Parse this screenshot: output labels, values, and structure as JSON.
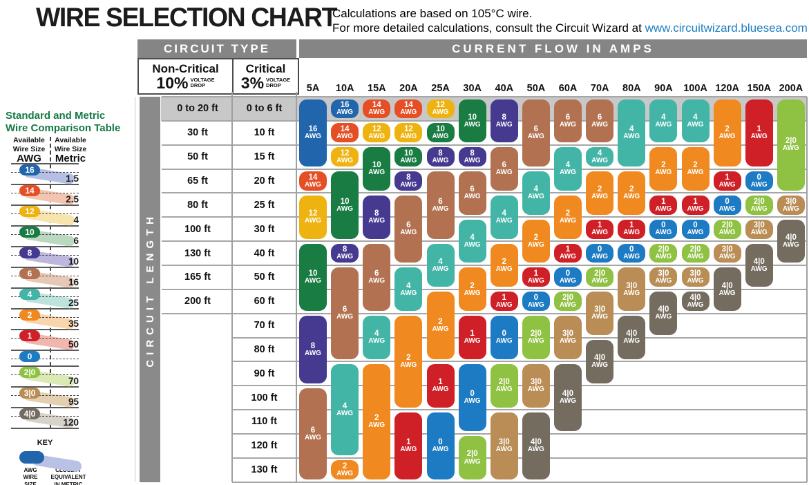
{
  "page": {
    "title": "WIRE SELECTION CHART",
    "subtitle_line1": "Calculations are based on 105°C wire.",
    "subtitle_line2": "For more detailed calculations, consult the Circuit Wizard at ",
    "subtitle_link": "www.circuitwizard.bluesea.com"
  },
  "table": {
    "circuit_type_header": "CIRCUIT TYPE",
    "current_flow_header": "CURRENT FLOW IN AMPS",
    "circuit_length_label": "CIRCUIT LENGTH",
    "non_critical": {
      "name": "Non-Critical",
      "percent": "10%",
      "qualifier": "VOLTAGE\nDROP"
    },
    "critical": {
      "name": "Critical",
      "percent": "3%",
      "qualifier": "VOLTAGE\nDROP"
    }
  },
  "chart_data": {
    "type": "table",
    "title": "WIRE SELECTION CHART",
    "x_axis": "CURRENT FLOW IN AMPS",
    "y_axis": "CIRCUIT LENGTH",
    "amp_columns": [
      "5A",
      "10A",
      "15A",
      "20A",
      "25A",
      "30A",
      "40A",
      "50A",
      "60A",
      "70A",
      "80A",
      "90A",
      "100A",
      "120A",
      "150A",
      "200A"
    ],
    "length_rows": [
      {
        "non_critical": "0 to 20 ft",
        "critical": "0 to 6 ft"
      },
      {
        "non_critical": "30 ft",
        "critical": "10 ft"
      },
      {
        "non_critical": "50 ft",
        "critical": "15 ft"
      },
      {
        "non_critical": "65 ft",
        "critical": "20 ft"
      },
      {
        "non_critical": "80 ft",
        "critical": "25 ft"
      },
      {
        "non_critical": "100 ft",
        "critical": "30 ft"
      },
      {
        "non_critical": "130 ft",
        "critical": "40 ft"
      },
      {
        "non_critical": "165 ft",
        "critical": "50 ft"
      },
      {
        "non_critical": "200 ft",
        "critical": "60 ft"
      },
      {
        "non_critical": "",
        "critical": "70 ft"
      },
      {
        "non_critical": "",
        "critical": "80 ft"
      },
      {
        "non_critical": "",
        "critical": "90 ft"
      },
      {
        "non_critical": "",
        "critical": "100 ft"
      },
      {
        "non_critical": "",
        "critical": "110 ft"
      },
      {
        "non_critical": "",
        "critical": "120 ft"
      },
      {
        "non_critical": "",
        "critical": "130 ft"
      }
    ],
    "awg_unit_label": "AWG",
    "wire_gauge_spans": [
      {
        "amps": "5A",
        "pills": [
          [
            "16",
            1,
            3
          ],
          [
            "14",
            4,
            4
          ],
          [
            "12",
            5,
            6
          ],
          [
            "10",
            7,
            9
          ],
          [
            "8",
            10,
            12
          ],
          [
            "6",
            13,
            16
          ]
        ]
      },
      {
        "amps": "10A",
        "pills": [
          [
            "16",
            1,
            1
          ],
          [
            "14",
            2,
            2
          ],
          [
            "12",
            3,
            3
          ],
          [
            "10",
            4,
            6
          ],
          [
            "8",
            7,
            7
          ],
          [
            "6",
            8,
            11
          ],
          [
            "4",
            12,
            15
          ],
          [
            "2",
            16,
            16
          ]
        ]
      },
      {
        "amps": "15A",
        "pills": [
          [
            "14",
            1,
            1
          ],
          [
            "12",
            2,
            2
          ],
          [
            "10",
            3,
            4
          ],
          [
            "8",
            5,
            6
          ],
          [
            "6",
            7,
            9
          ],
          [
            "4",
            10,
            11
          ],
          [
            "2",
            12,
            16
          ]
        ]
      },
      {
        "amps": "20A",
        "pills": [
          [
            "14",
            1,
            1
          ],
          [
            "12",
            2,
            2
          ],
          [
            "10",
            3,
            3
          ],
          [
            "8",
            4,
            4
          ],
          [
            "6",
            5,
            7
          ],
          [
            "4",
            8,
            9
          ],
          [
            "2",
            10,
            13
          ],
          [
            "1",
            14,
            16
          ]
        ]
      },
      {
        "amps": "25A",
        "pills": [
          [
            "12",
            1,
            1
          ],
          [
            "10",
            2,
            2
          ],
          [
            "8",
            3,
            3
          ],
          [
            "6",
            4,
            6
          ],
          [
            "4",
            7,
            8
          ],
          [
            "2",
            9,
            11
          ],
          [
            "1",
            12,
            13
          ],
          [
            "0",
            14,
            16
          ]
        ]
      },
      {
        "amps": "30A",
        "pills": [
          [
            "10",
            1,
            2
          ],
          [
            "8",
            3,
            3
          ],
          [
            "6",
            4,
            5
          ],
          [
            "4",
            6,
            7
          ],
          [
            "2",
            8,
            9
          ],
          [
            "1",
            10,
            11
          ],
          [
            "0",
            12,
            14
          ],
          [
            "2|0",
            15,
            16
          ]
        ]
      },
      {
        "amps": "40A",
        "pills": [
          [
            "8",
            1,
            2
          ],
          [
            "6",
            3,
            4
          ],
          [
            "4",
            5,
            6
          ],
          [
            "2",
            7,
            8
          ],
          [
            "1",
            9,
            9
          ],
          [
            "0",
            10,
            11
          ],
          [
            "2|0",
            12,
            13
          ],
          [
            "3|0",
            14,
            16
          ]
        ]
      },
      {
        "amps": "50A",
        "pills": [
          [
            "6",
            1,
            3
          ],
          [
            "4",
            4,
            5
          ],
          [
            "2",
            6,
            7
          ],
          [
            "1",
            8,
            8
          ],
          [
            "0",
            9,
            9
          ],
          [
            "2|0",
            10,
            11
          ],
          [
            "3|0",
            12,
            13
          ],
          [
            "4|0",
            14,
            16
          ]
        ]
      },
      {
        "amps": "60A",
        "pills": [
          [
            "6",
            1,
            2
          ],
          [
            "4",
            3,
            4
          ],
          [
            "2",
            5,
            6
          ],
          [
            "1",
            7,
            7
          ],
          [
            "0",
            8,
            8
          ],
          [
            "2|0",
            9,
            9
          ],
          [
            "3|0",
            10,
            11
          ],
          [
            "4|0",
            12,
            14
          ]
        ]
      },
      {
        "amps": "70A",
        "pills": [
          [
            "6",
            1,
            2
          ],
          [
            "4",
            3,
            3
          ],
          [
            "2",
            4,
            5
          ],
          [
            "1",
            6,
            6
          ],
          [
            "0",
            7,
            7
          ],
          [
            "2|0",
            8,
            8
          ],
          [
            "3|0",
            9,
            10
          ],
          [
            "4|0",
            11,
            12
          ]
        ]
      },
      {
        "amps": "80A",
        "pills": [
          [
            "4",
            1,
            3
          ],
          [
            "2",
            4,
            5
          ],
          [
            "1",
            6,
            6
          ],
          [
            "0",
            7,
            7
          ],
          [
            "3|0",
            8,
            9
          ],
          [
            "4|0",
            10,
            11
          ]
        ]
      },
      {
        "amps": "90A",
        "pills": [
          [
            "4",
            1,
            2
          ],
          [
            "2",
            3,
            4
          ],
          [
            "1",
            5,
            5
          ],
          [
            "0",
            6,
            6
          ],
          [
            "2|0",
            7,
            7
          ],
          [
            "3|0",
            8,
            8
          ],
          [
            "4|0",
            9,
            10
          ]
        ]
      },
      {
        "amps": "100A",
        "pills": [
          [
            "4",
            1,
            2
          ],
          [
            "2",
            3,
            4
          ],
          [
            "1",
            5,
            5
          ],
          [
            "0",
            6,
            6
          ],
          [
            "2|0",
            7,
            7
          ],
          [
            "3|0",
            8,
            8
          ],
          [
            "4|0",
            9,
            9
          ]
        ]
      },
      {
        "amps": "120A",
        "pills": [
          [
            "2",
            1,
            3
          ],
          [
            "1",
            4,
            4
          ],
          [
            "0",
            5,
            5
          ],
          [
            "2|0",
            6,
            6
          ],
          [
            "3|0",
            7,
            7
          ],
          [
            "4|0",
            8,
            9
          ]
        ]
      },
      {
        "amps": "150A",
        "pills": [
          [
            "1",
            1,
            3
          ],
          [
            "0",
            4,
            4
          ],
          [
            "2|0",
            5,
            5
          ],
          [
            "3|0",
            6,
            6
          ],
          [
            "4|0",
            7,
            8
          ]
        ]
      },
      {
        "amps": "200A",
        "pills": [
          [
            "2|0",
            1,
            4
          ],
          [
            "3|0",
            5,
            5
          ],
          [
            "4|0",
            6,
            7
          ]
        ]
      }
    ],
    "awg_colors": {
      "16": "#2166ad",
      "14": "#e64f26",
      "12": "#efb311",
      "10": "#187c43",
      "8": "#453a90",
      "6": "#b27251",
      "4": "#43b5a7",
      "2": "#f08a20",
      "1": "#d02027",
      "0": "#1d7bc3",
      "2|0": "#8fc142",
      "3|0": "#b98d55",
      "4|0": "#756c60"
    }
  },
  "sidebar": {
    "title_line1": "Standard and Metric",
    "title_line2": "Wire Comparison Table",
    "left_header_line1": "Available",
    "left_header_line2": "Wire Size",
    "left_header_unit": "AWG",
    "right_header_line1": "Available",
    "right_header_line2": "Wire Size",
    "right_header_unit": "Metric",
    "entries": [
      {
        "awg": "16",
        "metric": "1.5",
        "swoosh": "#b4bfe3"
      },
      {
        "awg": "14",
        "metric": "2.5",
        "swoosh": "#f3c5b0"
      },
      {
        "awg": "12",
        "metric": "4",
        "swoosh": "#f8e5ae"
      },
      {
        "awg": "10",
        "metric": "6",
        "swoosh": "#bad7bf"
      },
      {
        "awg": "8",
        "metric": "10",
        "swoosh": "#bdb7de"
      },
      {
        "awg": "6",
        "metric": "16",
        "swoosh": "#e7c8b6"
      },
      {
        "awg": "4",
        "metric": "25",
        "swoosh": "#bee3dd"
      },
      {
        "awg": "2",
        "metric": "35",
        "swoosh": "#f8d5ab"
      },
      {
        "awg": "1",
        "metric": "50",
        "swoosh": "#f1b7af"
      },
      {
        "awg": "0",
        "metric": "",
        "swoosh": ""
      },
      {
        "awg": "2|0",
        "metric": "70",
        "swoosh": "#dbeab4"
      },
      {
        "awg": "3|0",
        "metric": "95",
        "swoosh": "#e3d0b3"
      },
      {
        "awg": "4|0",
        "metric": "120",
        "swoosh": "#d7d3ca"
      }
    ],
    "key": {
      "title": "KEY",
      "pill_color": "#2166ad",
      "swoosh_color": "#b9c1e4",
      "left_label": "AWG\nWIRE\nSIZE",
      "right_label": "CLOSEST\nEQUIVALENT\nIN METRIC"
    }
  },
  "colors": {
    "header_bar": "#858585",
    "circuit_length_bar": "#8a8a8a",
    "row1_band": "#c8c8c8",
    "grid_line": "#a6a6a6",
    "link_blue": "#1e7fc1",
    "sidebar_green": "#157a45"
  }
}
